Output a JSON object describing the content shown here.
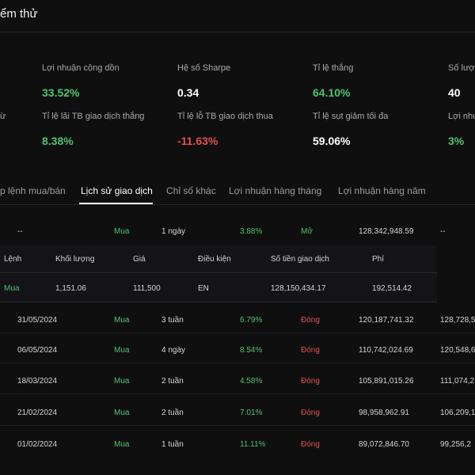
{
  "header": {
    "title": "ểm thử"
  },
  "stats": [
    {
      "label": "Lợi nhuận cộng dồn",
      "value": "33.52%",
      "tone": "green"
    },
    {
      "label": "Hệ số Sharpe",
      "value": "0.34",
      "tone": "white"
    },
    {
      "label": "Tỉ lệ thắng",
      "value": "64.10%",
      "tone": "green"
    },
    {
      "label": "Số lượn",
      "value": "40",
      "tone": "white"
    },
    {
      "label": "Tỉ lệ lãi TB giao dịch thắng",
      "value": "8.38%",
      "tone": "green"
    },
    {
      "label": "Tỉ lệ lỗ TB giao dịch thua",
      "value": "-11.63%",
      "tone": "red"
    },
    {
      "label": "Tỉ lệ sụt giảm tối đa",
      "value": "59.06%",
      "tone": "white"
    },
    {
      "label": "Lợi nhu",
      "value": "3%",
      "tone": "green"
    }
  ],
  "left_cut_label": "ừ",
  "tabs": [
    {
      "label": "p lệnh mua/bán",
      "active": false
    },
    {
      "label": "Lịch sử giao dịch",
      "active": true
    },
    {
      "label": "Chỉ số khác",
      "active": false
    },
    {
      "label": "Lợi nhuận hàng tháng",
      "active": false
    },
    {
      "label": "Lợi nhuận hàng năm",
      "active": false
    }
  ],
  "trade_rows": [
    {
      "date": "--",
      "side": "Mua",
      "duration": "1 ngày",
      "pct": "3.88%",
      "status": "Mở",
      "amount": "128,342,948.59",
      "extra": "--"
    },
    {
      "date": "31/05/2024",
      "side": "Mua",
      "duration": "3 tuần",
      "pct": "6.79%",
      "status": "Đóng",
      "amount": "120,187,741.32",
      "extra": "128,728,5"
    },
    {
      "date": "06/05/2024",
      "side": "Mua",
      "duration": "4 ngày",
      "pct": "8.54%",
      "status": "Đóng",
      "amount": "110,742,024.69",
      "extra": "120,548,6"
    },
    {
      "date": "18/03/2024",
      "side": "Mua",
      "duration": "2 tuần",
      "pct": "4.58%",
      "status": "Đóng",
      "amount": "105,891,015.26",
      "extra": "111,074,2"
    },
    {
      "date": "21/02/2024",
      "side": "Mua",
      "duration": "2 tuần",
      "pct": "7.01%",
      "status": "Đóng",
      "amount": "98,958,962.91",
      "extra": "106,209,1"
    },
    {
      "date": "01/02/2024",
      "side": "Mua",
      "duration": "1 tuần",
      "pct": "11.11%",
      "status": "Đóng",
      "amount": "89,072,846.70",
      "extra": "99,256,2"
    }
  ],
  "sub_table": {
    "headers": [
      "Lệnh",
      "Khối lượng",
      "Giá",
      "Điều kiện",
      "Số tiền giao dịch",
      "Phí"
    ],
    "row": [
      "Mua",
      "1,151.06",
      "111,500",
      "EN",
      "128,150,434.17",
      "192,514.42"
    ]
  }
}
